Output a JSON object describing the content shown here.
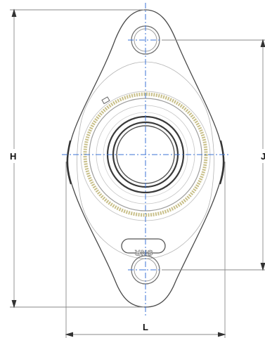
{
  "drawing": {
    "dimensions": {
      "height_label": "H",
      "bolt_spacing_label": "J",
      "width_label": "L"
    },
    "brand_logo_text": "SNR"
  },
  "colors": {
    "outline": "#4a4a4a",
    "dimension_line": "#8a8a8a",
    "centerline": "#3b73d6",
    "seal_ring": "#c9c08a",
    "background": "#ffffff"
  }
}
